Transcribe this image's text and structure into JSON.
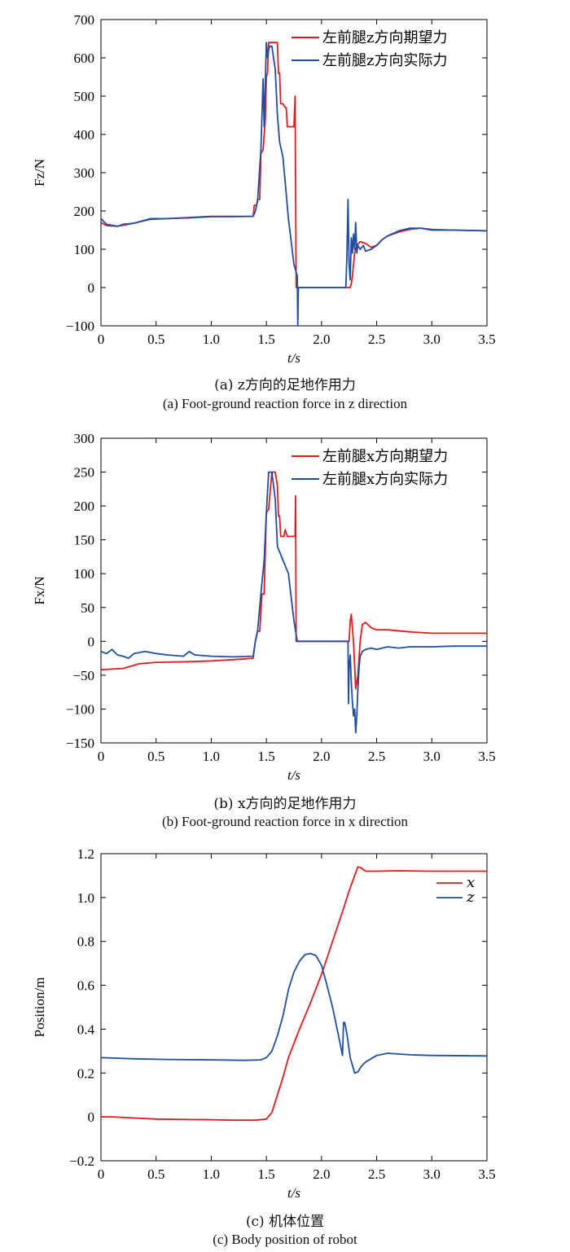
{
  "chart_data": [
    {
      "type": "line",
      "caption_zh": "(a) z方向的足地作用力",
      "caption_en": "(a) Foot-ground reaction force in z direction",
      "xlabel": "t/s",
      "ylabel": "Fz/N",
      "xlim": [
        0,
        3.5
      ],
      "ylim": [
        -100,
        700
      ],
      "xticks": [
        "0",
        "0.5",
        "1.0",
        "1.5",
        "2.0",
        "2.5",
        "3.0",
        "3.5"
      ],
      "yticks": [
        "−100",
        "0",
        "100",
        "200",
        "300",
        "400",
        "500",
        "600",
        "700"
      ],
      "legend_position": "top-right",
      "series": [
        {
          "name": "左前腿z方向期望力",
          "color": "#e31a1c",
          "x": [
            0,
            0.05,
            0.15,
            0.3,
            0.45,
            0.6,
            0.8,
            1.0,
            1.2,
            1.38,
            1.39,
            1.41,
            1.42,
            1.44,
            1.45,
            1.47,
            1.49,
            1.5,
            1.51,
            1.52,
            1.53,
            1.55,
            1.57,
            1.6,
            1.61,
            1.62,
            1.63,
            1.65,
            1.67,
            1.68,
            1.69,
            1.75,
            1.76,
            1.77,
            1.78,
            2.22,
            2.26,
            2.27,
            2.28,
            2.3,
            2.32,
            2.35,
            2.4,
            2.45,
            2.5,
            2.55,
            2.6,
            2.7,
            2.8,
            2.9,
            3.0,
            3.2,
            3.5
          ],
          "y": [
            170,
            162,
            160,
            168,
            178,
            180,
            182,
            185,
            185,
            186,
            215,
            215,
            230,
            230,
            350,
            360,
            440,
            550,
            560,
            640,
            640,
            640,
            640,
            640,
            560,
            560,
            480,
            480,
            470,
            470,
            420,
            420,
            500,
            0,
            0,
            0,
            0,
            10,
            30,
            90,
            110,
            120,
            115,
            105,
            110,
            125,
            135,
            145,
            152,
            155,
            152,
            150,
            148
          ]
        },
        {
          "name": "左前腿z方向实际力",
          "color": "#1f4fa3",
          "x": [
            0,
            0.05,
            0.15,
            0.2,
            0.3,
            0.45,
            0.6,
            0.8,
            1.0,
            1.2,
            1.38,
            1.4,
            1.42,
            1.45,
            1.47,
            1.48,
            1.5,
            1.51,
            1.52,
            1.53,
            1.55,
            1.58,
            1.6,
            1.62,
            1.65,
            1.7,
            1.75,
            1.78,
            1.785,
            1.79,
            2.22,
            2.23,
            2.24,
            2.25,
            2.26,
            2.27,
            2.28,
            2.29,
            2.3,
            2.31,
            2.32,
            2.33,
            2.35,
            2.38,
            2.4,
            2.45,
            2.5,
            2.55,
            2.6,
            2.7,
            2.8,
            2.9,
            3.0,
            3.2,
            3.5
          ],
          "y": [
            180,
            165,
            160,
            165,
            168,
            180,
            180,
            183,
            186,
            186,
            186,
            200,
            225,
            360,
            545,
            420,
            640,
            600,
            620,
            630,
            630,
            570,
            450,
            380,
            340,
            180,
            60,
            30,
            -100,
            0,
            0,
            80,
            230,
            60,
            20,
            130,
            90,
            140,
            100,
            170,
            90,
            110,
            100,
            110,
            95,
            100,
            110,
            125,
            135,
            148,
            155,
            155,
            150,
            150,
            148
          ]
        }
      ]
    },
    {
      "type": "line",
      "caption_zh": "(b) x方向的足地作用力",
      "caption_en": "(b) Foot-ground reaction force in x direction",
      "xlabel": "t/s",
      "ylabel": "Fx/N",
      "xlim": [
        0,
        3.5
      ],
      "ylim": [
        -150,
        300
      ],
      "xticks": [
        "0",
        "0.5",
        "1.0",
        "1.5",
        "2.0",
        "2.5",
        "3.0",
        "3.5"
      ],
      "yticks": [
        "−150",
        "−100",
        "−50",
        "0",
        "50",
        "100",
        "150",
        "200",
        "250",
        "300"
      ],
      "legend_position": "top-right",
      "series": [
        {
          "name": "左前腿x方向期望力",
          "color": "#e31a1c",
          "x": [
            0,
            0.2,
            0.35,
            0.5,
            0.8,
            1.0,
            1.2,
            1.38,
            1.4,
            1.42,
            1.44,
            1.46,
            1.48,
            1.5,
            1.52,
            1.55,
            1.58,
            1.6,
            1.61,
            1.62,
            1.63,
            1.66,
            1.67,
            1.68,
            1.69,
            1.76,
            1.765,
            1.77,
            1.78,
            2.25,
            2.26,
            2.27,
            2.29,
            2.31,
            2.33,
            2.35,
            2.37,
            2.4,
            2.45,
            2.5,
            2.6,
            2.8,
            3.0,
            3.5
          ],
          "y": [
            -42,
            -40,
            -33,
            -31,
            -30,
            -29,
            -27,
            -25,
            0,
            15,
            15,
            70,
            70,
            190,
            195,
            250,
            250,
            230,
            185,
            185,
            155,
            155,
            165,
            160,
            155,
            155,
            215,
            0,
            0,
            0,
            30,
            40,
            0,
            -70,
            -50,
            0,
            25,
            28,
            20,
            17,
            17,
            14,
            12,
            12
          ]
        },
        {
          "name": "左前腿x方向实际力",
          "color": "#1f4fa3",
          "x": [
            0,
            0.05,
            0.1,
            0.15,
            0.2,
            0.25,
            0.3,
            0.4,
            0.5,
            0.6,
            0.75,
            0.8,
            0.85,
            1.0,
            1.2,
            1.38,
            1.4,
            1.42,
            1.45,
            1.48,
            1.5,
            1.52,
            1.55,
            1.58,
            1.6,
            1.65,
            1.7,
            1.75,
            1.77,
            1.78,
            2.24,
            2.245,
            2.25,
            2.26,
            2.27,
            2.28,
            2.29,
            2.3,
            2.31,
            2.32,
            2.33,
            2.34,
            2.35,
            2.37,
            2.4,
            2.45,
            2.5,
            2.6,
            2.7,
            2.8,
            3.0,
            3.2,
            3.5
          ],
          "y": [
            -15,
            -18,
            -12,
            -20,
            -22,
            -25,
            -18,
            -15,
            -18,
            -20,
            -22,
            -15,
            -20,
            -22,
            -23,
            -22,
            0,
            15,
            70,
            120,
            190,
            250,
            250,
            210,
            140,
            120,
            100,
            30,
            10,
            0,
            0,
            -92,
            -40,
            -20,
            -60,
            -90,
            -110,
            -100,
            -135,
            -110,
            -70,
            -40,
            -22,
            -15,
            -12,
            -10,
            -12,
            -8,
            -10,
            -8,
            -8,
            -7,
            -7
          ]
        }
      ]
    },
    {
      "type": "line",
      "caption_zh": "(c) 机体位置",
      "caption_en": "(c) Body position of robot",
      "xlabel": "t/s",
      "ylabel": "Position/m",
      "xlim": [
        0,
        3.5
      ],
      "ylim": [
        -0.2,
        1.2
      ],
      "xticks": [
        "0",
        "0.5",
        "1.0",
        "1.5",
        "2.0",
        "2.5",
        "3.0",
        "3.5"
      ],
      "yticks": [
        "−0.2",
        "0",
        "0.2",
        "0.4",
        "0.6",
        "0.8",
        "1.0",
        "1.2"
      ],
      "legend_position": "top-right",
      "series": [
        {
          "name": "x",
          "color": "#e31a1c",
          "x": [
            0,
            0.1,
            0.3,
            0.5,
            0.8,
            1.0,
            1.2,
            1.4,
            1.5,
            1.55,
            1.6,
            1.65,
            1.7,
            1.8,
            1.9,
            2.0,
            2.1,
            2.2,
            2.25,
            2.3,
            2.33,
            2.36,
            2.4,
            2.45,
            2.5,
            2.7,
            3.0,
            3.5
          ],
          "y": [
            0.0,
            0.0,
            -0.005,
            -0.01,
            -0.012,
            -0.013,
            -0.015,
            -0.015,
            -0.01,
            0.02,
            0.1,
            0.18,
            0.27,
            0.4,
            0.52,
            0.65,
            0.8,
            0.95,
            1.03,
            1.1,
            1.14,
            1.135,
            1.12,
            1.12,
            1.12,
            1.122,
            1.12,
            1.12
          ]
        },
        {
          "name": "z",
          "color": "#1f4fa3",
          "x": [
            0,
            0.3,
            0.6,
            1.0,
            1.3,
            1.45,
            1.5,
            1.55,
            1.6,
            1.65,
            1.7,
            1.75,
            1.8,
            1.85,
            1.9,
            1.95,
            2.0,
            2.05,
            2.1,
            2.15,
            2.19,
            2.2,
            2.21,
            2.23,
            2.26,
            2.3,
            2.33,
            2.36,
            2.4,
            2.5,
            2.6,
            2.8,
            3.0,
            3.5
          ],
          "y": [
            0.27,
            0.265,
            0.262,
            0.26,
            0.258,
            0.26,
            0.27,
            0.3,
            0.37,
            0.46,
            0.58,
            0.66,
            0.71,
            0.74,
            0.745,
            0.735,
            0.69,
            0.6,
            0.5,
            0.38,
            0.28,
            0.43,
            0.43,
            0.38,
            0.27,
            0.2,
            0.205,
            0.23,
            0.25,
            0.28,
            0.29,
            0.283,
            0.28,
            0.278
          ]
        }
      ]
    }
  ]
}
